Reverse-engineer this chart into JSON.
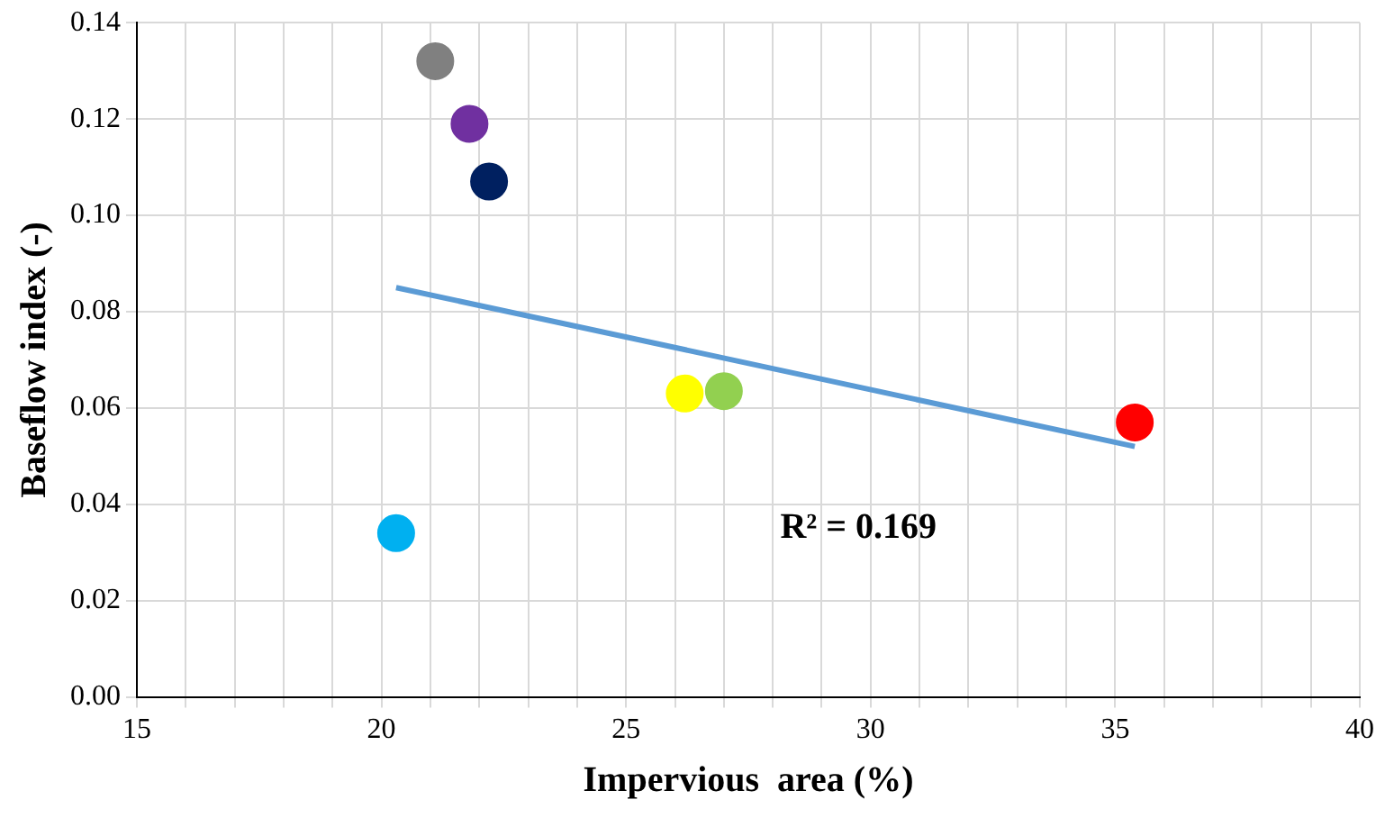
{
  "chart_data": {
    "type": "scatter",
    "xlabel": "Impervious  area (%)",
    "ylabel": "Baseflow index (-)",
    "xlim": [
      15,
      40
    ],
    "ylim": [
      0,
      0.14
    ],
    "xticks": [
      15,
      {
        "value": 16,
        "label": null
      },
      {
        "value": 17,
        "label": null
      },
      {
        "value": 18,
        "label": null
      },
      {
        "value": 19,
        "label": null
      },
      20,
      {
        "value": 21,
        "label": null
      },
      {
        "value": 22,
        "label": null
      },
      {
        "value": 23,
        "label": null
      },
      {
        "value": 24,
        "label": null
      },
      25,
      {
        "value": 26,
        "label": null
      },
      {
        "value": 27,
        "label": null
      },
      {
        "value": 28,
        "label": null
      },
      {
        "value": 29,
        "label": null
      },
      30,
      {
        "value": 31,
        "label": null
      },
      {
        "value": 32,
        "label": null
      },
      {
        "value": 33,
        "label": null
      },
      {
        "value": 34,
        "label": null
      },
      35,
      {
        "value": 36,
        "label": null
      },
      {
        "value": 37,
        "label": null
      },
      {
        "value": 38,
        "label": null
      },
      {
        "value": 39,
        "label": null
      },
      40
    ],
    "yticks": [
      {
        "value": 0,
        "label": "0.00"
      },
      {
        "value": 0.02,
        "label": "0.02"
      },
      {
        "value": 0.04,
        "label": "0.04"
      },
      {
        "value": 0.06,
        "label": "0.06"
      },
      {
        "value": 0.08,
        "label": "0.08"
      },
      {
        "value": 0.1,
        "label": "0.10"
      },
      {
        "value": 0.12,
        "label": "0.12"
      },
      {
        "value": 0.14,
        "label": "0.14"
      }
    ],
    "grid": true,
    "legend": false,
    "series": [
      {
        "marker": "circle",
        "x": [
          21.1,
          21.8,
          22.2,
          26.2,
          27.0,
          35.4,
          20.3
        ],
        "values": [
          0.132,
          0.119,
          0.107,
          0.063,
          0.0635,
          0.057,
          0.034
        ],
        "colors": [
          "#808080",
          "#7030a0",
          "#002060",
          "#ffff00",
          "#92d050",
          "#ff0000",
          "#00b0f0"
        ]
      },
      {
        "type": "line",
        "x": [
          20.3,
          35.4
        ],
        "values": [
          0.085,
          0.052
        ],
        "color": "#5b9bd5"
      }
    ],
    "annotations": [
      "R² = 0.169"
    ]
  }
}
